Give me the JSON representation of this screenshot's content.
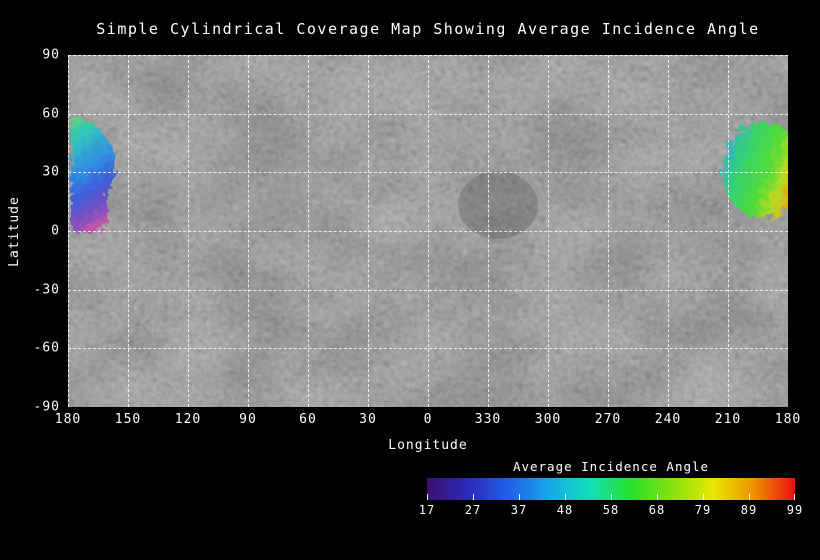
{
  "chart_data": {
    "type": "heatmap",
    "title": "Simple Cylindrical Coverage Map Showing Average Incidence Angle",
    "xlabel": "Longitude",
    "ylabel": "Latitude",
    "x_ticks": [
      "180",
      "150",
      "120",
      "90",
      "60",
      "30",
      "0",
      "330",
      "300",
      "270",
      "240",
      "210",
      "180"
    ],
    "y_ticks": [
      "90",
      "60",
      "30",
      "0",
      "-30",
      "-60",
      "-90"
    ],
    "x_range_deg": [
      180,
      -180
    ],
    "y_range_deg": [
      90,
      -90
    ],
    "grid": "dashed white lines every 30 degrees",
    "basemap": "grayscale simple-cylindrical mosaic of planetary surface",
    "coverage_regions": [
      {
        "name": "west-patch",
        "lon_range": [
          180,
          155
        ],
        "lat_range": [
          57,
          -2
        ],
        "color_description": "green-cyan at top grading to blue then purple-magenta at bottom",
        "incidence_values_approx": [
          27,
          68
        ]
      },
      {
        "name": "east-patch",
        "lon_range": [
          215,
          180
        ],
        "lat_range": [
          55,
          8
        ],
        "color_description": "cyan and green core with yellow-orange fringes on east edge",
        "incidence_values_approx": [
          37,
          89
        ]
      }
    ],
    "colorbar": {
      "label": "Average Incidence Angle",
      "ticks": [
        17,
        27,
        37,
        48,
        58,
        68,
        79,
        89,
        99
      ],
      "colors": [
        "#3b0f70",
        "#2a2ab8",
        "#1f5fe8",
        "#18a8e8",
        "#10e0b8",
        "#28e028",
        "#88e010",
        "#e8e800",
        "#f09000",
        "#e81010"
      ]
    }
  }
}
